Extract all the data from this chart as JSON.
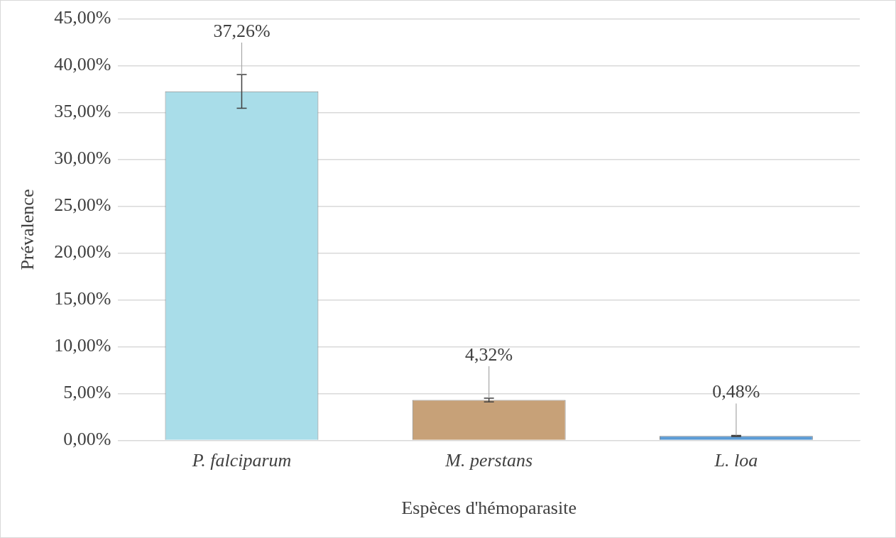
{
  "chart_data": {
    "type": "bar",
    "xlabel": "Espèces d'hémoparasite",
    "ylabel": "Prévalence",
    "categories": [
      "P. falciparum",
      "M. perstans",
      "L. loa"
    ],
    "values": [
      37.26,
      4.32,
      0.48
    ],
    "colors": [
      "#a9dde9",
      "#c7a178",
      "#5b9bd5"
    ],
    "errors": [
      1.8,
      0.2,
      0.05
    ],
    "value_labels": [
      "37,26%",
      "4,32%",
      "0,48%"
    ],
    "ylim": [
      0,
      45
    ],
    "yticks": [
      {
        "value": 0,
        "label": "0,00%"
      },
      {
        "value": 5,
        "label": "5,00%"
      },
      {
        "value": 10,
        "label": "10,00%"
      },
      {
        "value": 15,
        "label": "15,00%"
      },
      {
        "value": 20,
        "label": "20,00%"
      },
      {
        "value": 25,
        "label": "25,00%"
      },
      {
        "value": 30,
        "label": "30,00%"
      },
      {
        "value": 35,
        "label": "35,00%"
      },
      {
        "value": 40,
        "label": "40,00%"
      },
      {
        "value": 45,
        "label": "45,00%"
      }
    ],
    "grid": "y",
    "legend": false
  }
}
